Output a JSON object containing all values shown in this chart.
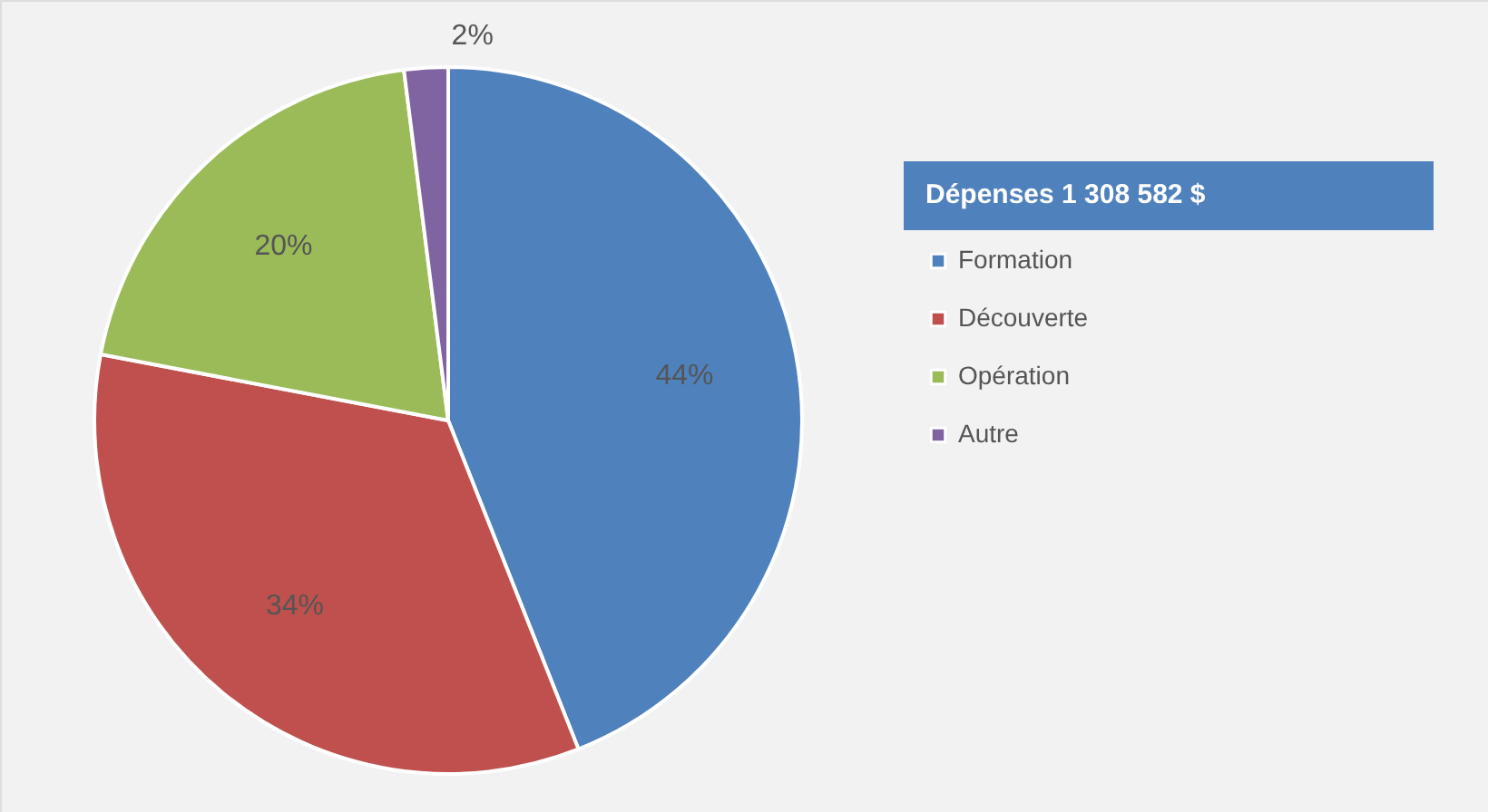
{
  "chart_data": {
    "type": "pie",
    "legend_title": "Dépenses 1 308 582 $",
    "categories": [
      "Formation",
      "Découverte",
      "Opération",
      "Autre"
    ],
    "values": [
      44,
      34,
      20,
      2
    ],
    "colors": [
      "#4f81bd",
      "#c0504d",
      "#9bbb59",
      "#8064a2"
    ],
    "value_labels": [
      "44%",
      "34%",
      "20%",
      "2%"
    ],
    "legend": "right"
  }
}
